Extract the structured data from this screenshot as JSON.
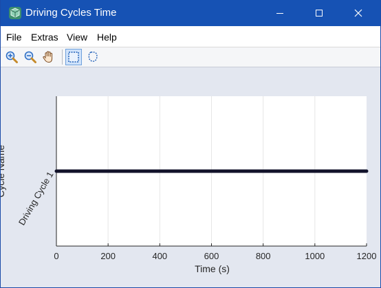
{
  "window": {
    "title": "Driving Cycles Time",
    "title_bar_color": "#1652b4"
  },
  "menu": {
    "items": [
      "File",
      "Extras",
      "View",
      "Help"
    ]
  },
  "toolbar": {
    "tools": [
      {
        "name": "zoom-in-icon",
        "active": false
      },
      {
        "name": "zoom-out-icon",
        "active": false
      },
      {
        "name": "pan-hand-icon",
        "active": false
      },
      {
        "name": "rectangle-select-icon",
        "active": true
      },
      {
        "name": "lasso-select-icon",
        "active": false
      }
    ]
  },
  "chart_data": {
    "type": "line",
    "xlabel": "Time (s)",
    "ylabel": "Cycle Name",
    "xlim": [
      0,
      1200
    ],
    "x_ticks": [
      0,
      200,
      400,
      600,
      800,
      1000,
      1200
    ],
    "categories": [
      "Driving Cycle 1"
    ],
    "grid": true,
    "series": [
      {
        "category": "Driving Cycle 1",
        "x": [
          0,
          1200
        ],
        "color": "#12122a"
      }
    ]
  }
}
